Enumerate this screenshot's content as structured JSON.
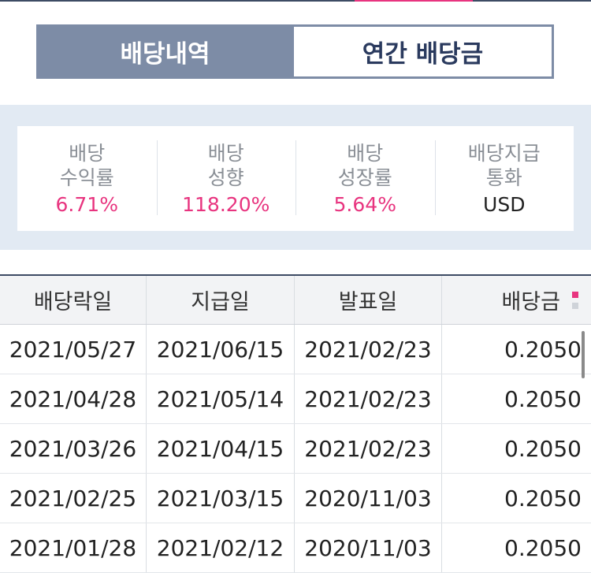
{
  "tabs": [
    {
      "label": "배당내역",
      "active": true
    },
    {
      "label": "연간 배당금",
      "active": false
    }
  ],
  "stats": [
    {
      "label": "배당\n수익률",
      "value": "6.71%"
    },
    {
      "label": "배당\n성향",
      "value": "118.20%"
    },
    {
      "label": "배당\n성장률",
      "value": "5.64%"
    },
    {
      "label": "배당지급\n통화",
      "value": "USD"
    }
  ],
  "table": {
    "headers": [
      "배당락일",
      "지급일",
      "발표일",
      "배당금"
    ],
    "rows": [
      [
        "2021/05/27",
        "2021/06/15",
        "2021/02/23",
        "0.2050"
      ],
      [
        "2021/04/28",
        "2021/05/14",
        "2021/02/23",
        "0.2050"
      ],
      [
        "2021/03/26",
        "2021/04/15",
        "2021/02/23",
        "0.2050"
      ],
      [
        "2021/02/25",
        "2021/03/15",
        "2020/11/03",
        "0.2050"
      ],
      [
        "2021/01/28",
        "2021/02/12",
        "2020/11/03",
        "0.2050"
      ]
    ]
  },
  "colors": {
    "accent": "#e8347f",
    "tab_active_bg": "#7d8ca6",
    "panel_bg": "#e2eaf3"
  }
}
